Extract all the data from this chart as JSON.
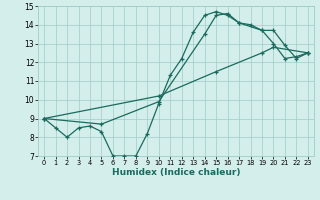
{
  "xlabel": "Humidex (Indice chaleur)",
  "bg_color": "#d4eeeb",
  "line_color": "#1a6b5e",
  "xlim": [
    -0.5,
    23.5
  ],
  "ylim": [
    7,
    15
  ],
  "yticks": [
    7,
    8,
    9,
    10,
    11,
    12,
    13,
    14,
    15
  ],
  "xticks": [
    0,
    1,
    2,
    3,
    4,
    5,
    6,
    7,
    8,
    9,
    10,
    11,
    12,
    13,
    14,
    15,
    16,
    17,
    18,
    19,
    20,
    21,
    22,
    23
  ],
  "line1_x": [
    0,
    1,
    2,
    3,
    4,
    5,
    6,
    7,
    8,
    9,
    10,
    11,
    12,
    13,
    14,
    15,
    16,
    17,
    18,
    19,
    20,
    21,
    22,
    23
  ],
  "line1_y": [
    9.0,
    8.5,
    8.0,
    8.5,
    8.6,
    8.3,
    7.0,
    7.0,
    7.0,
    8.2,
    9.8,
    11.3,
    12.2,
    13.6,
    14.5,
    14.7,
    14.5,
    14.1,
    14.0,
    13.7,
    13.0,
    12.2,
    12.3,
    12.5
  ],
  "line2_x": [
    0,
    5,
    10,
    14,
    15,
    16,
    17,
    19,
    20,
    21,
    22,
    23
  ],
  "line2_y": [
    9.0,
    8.7,
    9.9,
    13.5,
    14.5,
    14.6,
    14.1,
    13.7,
    13.7,
    12.9,
    12.2,
    12.5
  ],
  "line3_x": [
    0,
    10,
    15,
    19,
    20,
    23
  ],
  "line3_y": [
    9.0,
    10.2,
    11.5,
    12.5,
    12.8,
    12.5
  ]
}
